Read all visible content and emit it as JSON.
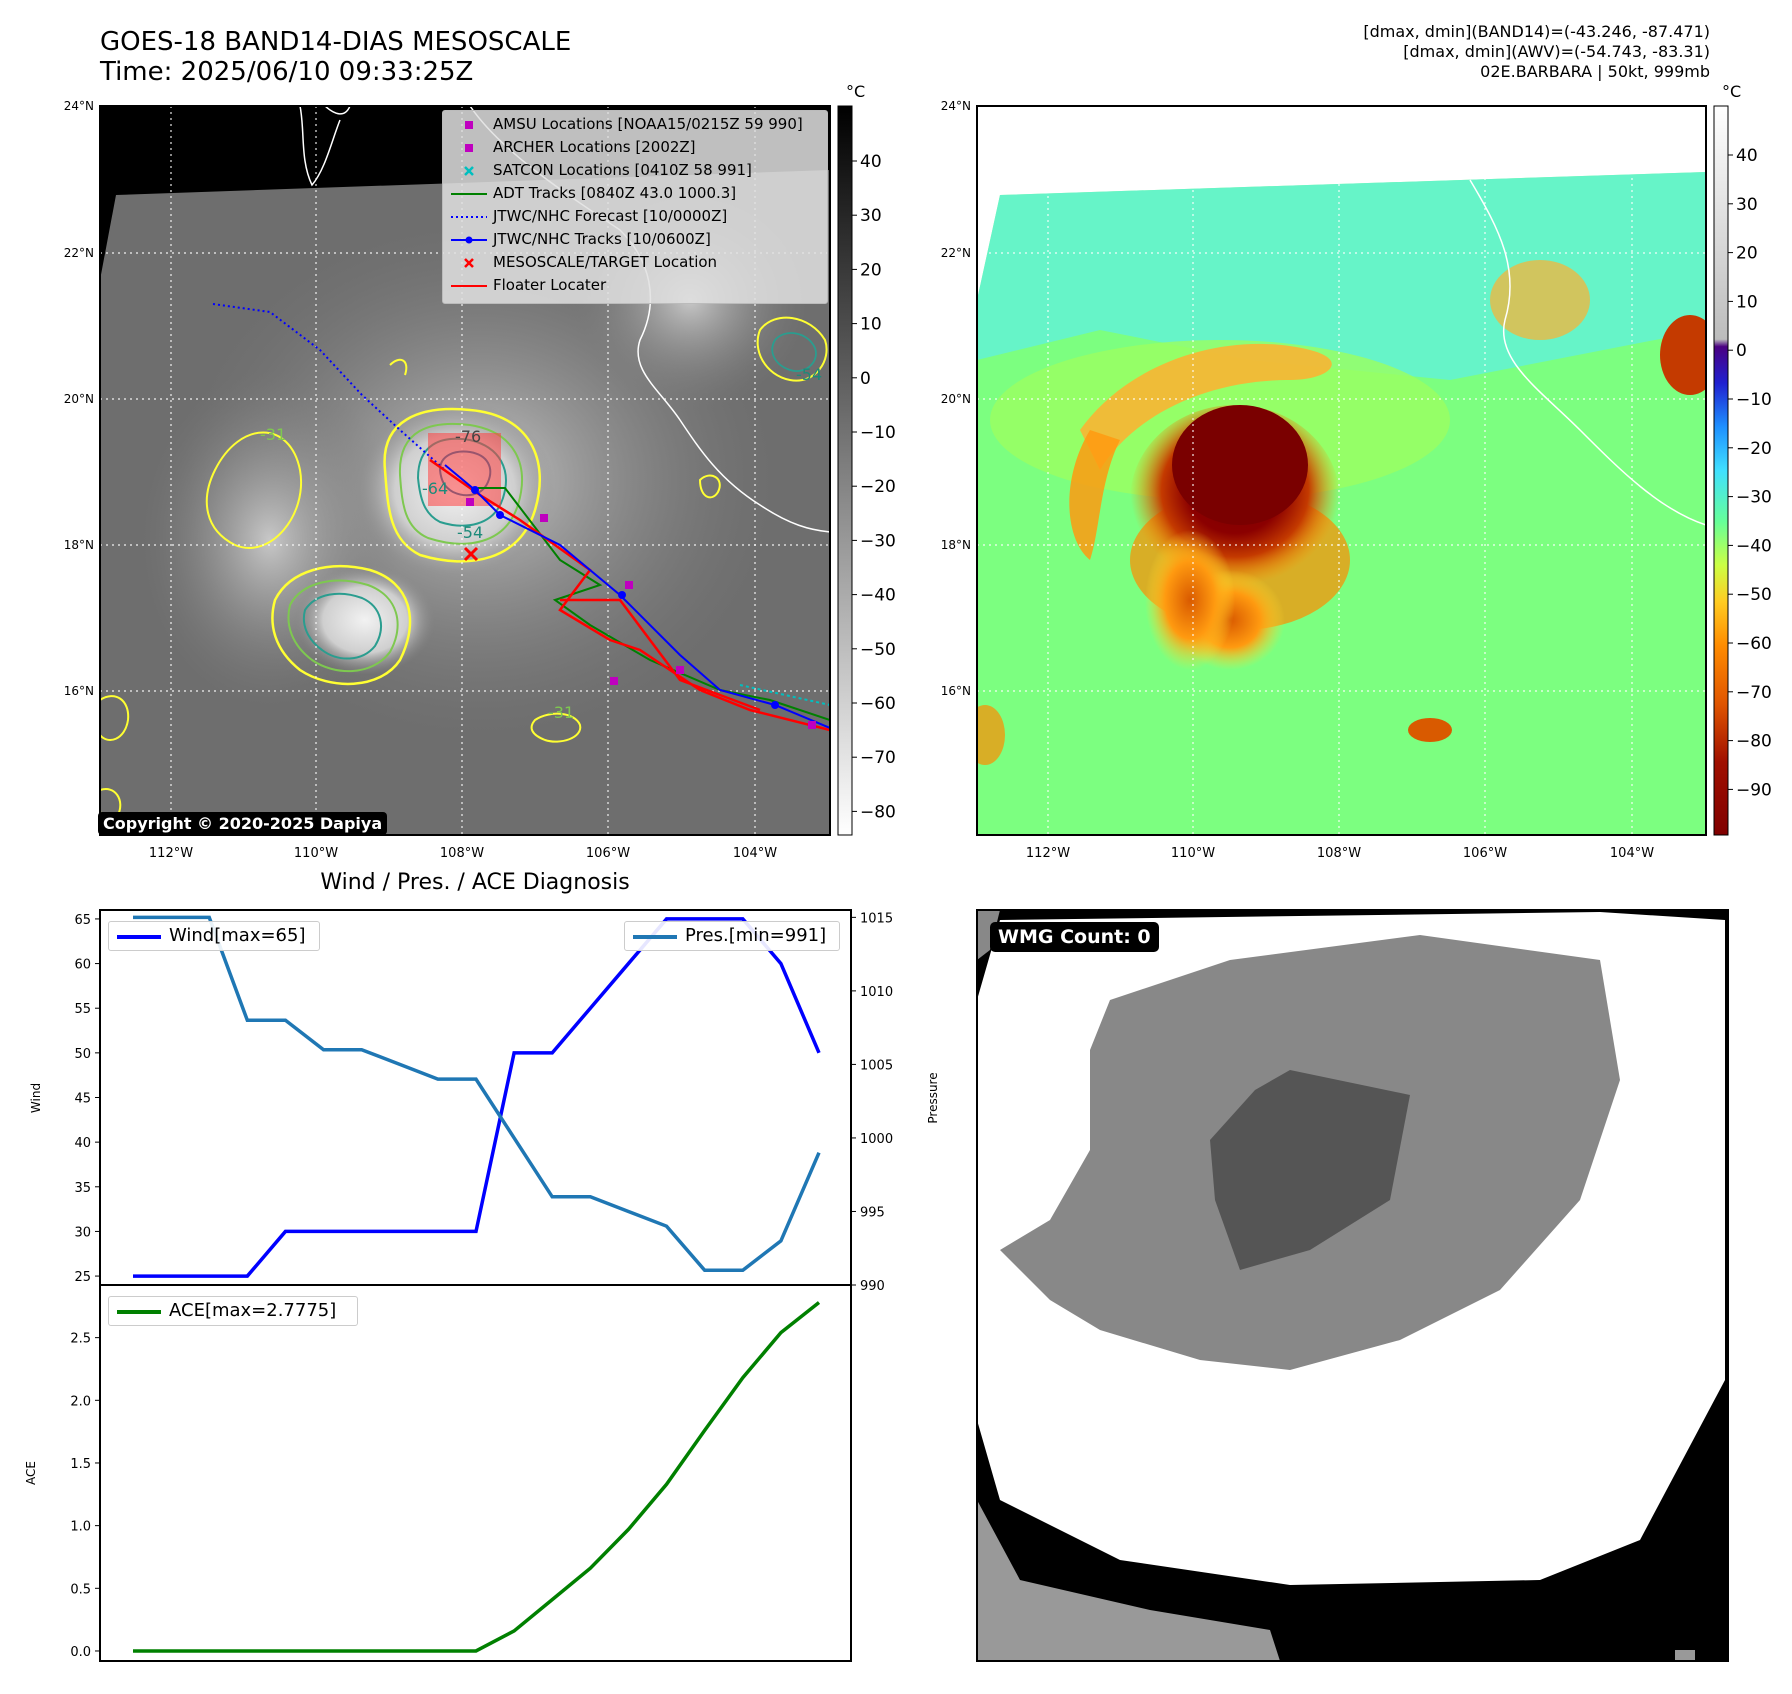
{
  "header": {
    "title_line1": "GOES-18 BAND14-DIAS MESOSCALE",
    "title_line2": "Time: 2025/06/10 09:33:25Z",
    "info_line1": "[dmax, dmin](BAND14)=(-43.246, -87.471)",
    "info_line2": "[dmax, dmin](AWV)=(-54.743, -83.31)",
    "info_line3": "02E.BARBARA | 50kt, 999mb"
  },
  "map": {
    "lat_labels": [
      "24°N",
      "22°N",
      "20°N",
      "18°N",
      "16°N"
    ],
    "lon_labels": [
      "112°W",
      "110°W",
      "108°W",
      "106°W",
      "104°W"
    ],
    "contour_labels": [
      "-76",
      "-64",
      "-54",
      "-31",
      "-54",
      "-31"
    ],
    "copyright": "Copyright © 2020-2025 Dapiya",
    "legend": [
      {
        "label": "AMSU Locations [NOAA15/0215Z 59 990]",
        "color": "#bf00bf",
        "symbol": "square"
      },
      {
        "label": "ARCHER Locations [2002Z]",
        "color": "#bf00bf",
        "symbol": "square"
      },
      {
        "label": "SATCON Locations [0410Z 58 991]",
        "color": "#00bfbf",
        "symbol": "x"
      },
      {
        "label": "ADT Tracks [0840Z 43.0 1000.3]",
        "color": "#008000",
        "symbol": "line"
      },
      {
        "label": "JTWC/NHC Forecast [10/0000Z]",
        "color": "#0000ff",
        "symbol": "dotted"
      },
      {
        "label": "JTWC/NHC Tracks [10/0600Z]",
        "color": "#0000ff",
        "symbol": "line-dot"
      },
      {
        "label": "MESOSCALE/TARGET Location",
        "color": "#ff0000",
        "symbol": "x"
      },
      {
        "label": "Floater Locater",
        "color": "#ff0000",
        "symbol": "line"
      }
    ]
  },
  "colorbar_gray": {
    "unit": "°C",
    "ticks": [
      "40",
      "30",
      "20",
      "10",
      "0",
      "−10",
      "−20",
      "−30",
      "−40",
      "−50",
      "−60",
      "−70",
      "−80"
    ]
  },
  "colorbar_color": {
    "unit": "°C",
    "ticks": [
      "40",
      "30",
      "20",
      "10",
      "0",
      "−10",
      "−20",
      "−30",
      "−40",
      "−50",
      "−60",
      "−70",
      "−80",
      "−90"
    ]
  },
  "wmg": {
    "label": "WMG Count: 0"
  },
  "chart_data": [
    {
      "type": "line",
      "title": "Wind / Pres. / ACE Diagnosis",
      "ylabel": "Wind",
      "y2label": "Pressure",
      "x": [
        0,
        1,
        2,
        3,
        4,
        5,
        6,
        7,
        8,
        9,
        10,
        11,
        12,
        13,
        14,
        15,
        16,
        17,
        18
      ],
      "ylim": [
        24,
        66
      ],
      "y2lim": [
        990,
        1015.5
      ],
      "yticks": [
        "25",
        "30",
        "35",
        "40",
        "45",
        "50",
        "55",
        "60",
        "65"
      ],
      "y2ticks": [
        "990",
        "995",
        "1000",
        "1005",
        "1010",
        "1015"
      ],
      "series": [
        {
          "name": "Wind[max=65]",
          "axis": "left",
          "color": "#0000ff",
          "values": [
            25,
            25,
            25,
            25,
            30,
            30,
            30,
            30,
            30,
            30,
            50,
            50,
            55,
            60,
            65,
            65,
            65,
            60,
            50
          ]
        },
        {
          "name": "Pres.[min=991]",
          "axis": "right",
          "color": "#1f77b4",
          "values": [
            1015,
            1015,
            1015,
            1008,
            1008,
            1006,
            1006,
            1005,
            1004,
            1004,
            1000,
            996,
            996,
            995,
            994,
            991,
            991,
            993,
            999
          ]
        }
      ]
    },
    {
      "type": "line",
      "ylabel": "ACE",
      "x": [
        0,
        1,
        2,
        3,
        4,
        5,
        6,
        7,
        8,
        9,
        10,
        11,
        12,
        13,
        14,
        15,
        16,
        17,
        18
      ],
      "ylim": [
        -0.08,
        2.92
      ],
      "yticks": [
        "0.0",
        "0.5",
        "1.0",
        "1.5",
        "2.0",
        "2.5"
      ],
      "series": [
        {
          "name": "ACE[max=2.7775]",
          "color": "#008000",
          "values": [
            0,
            0,
            0,
            0,
            0,
            0,
            0,
            0,
            0,
            0,
            0.16,
            0.41,
            0.66,
            0.97,
            1.33,
            1.76,
            2.18,
            2.54,
            2.78
          ]
        }
      ]
    }
  ]
}
